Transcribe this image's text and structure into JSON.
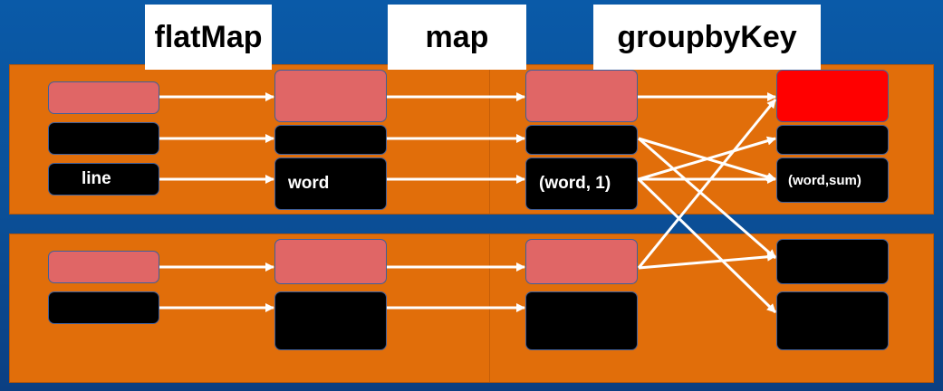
{
  "stages": {
    "flatmap_label": "flatMap",
    "map_label": "map",
    "groupbykey_label": "groupbyKey"
  },
  "partition_1": {
    "input": {
      "line_label": "line"
    },
    "flatmap": {
      "word_label": "word"
    },
    "map": {
      "pair_label": "(word, 1)"
    },
    "group": {
      "result_label": "(word,sum)"
    }
  },
  "colors": {
    "background": "#0b4f97",
    "partition": "#e16e0a",
    "record_highlight": "#e06666",
    "record_dark": "#000000",
    "group_highlight": "#ff0000",
    "arrow": "#ffffff"
  }
}
